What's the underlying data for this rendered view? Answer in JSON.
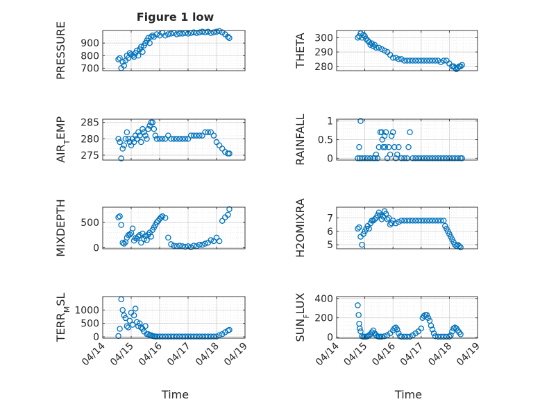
{
  "figure": {
    "title": "Figure 1 low"
  },
  "style": {
    "marker_color": "#0072BD",
    "grid_color": "#d9d9d9",
    "axis_color": "#262626"
  },
  "chart_data": [
    {
      "type": "scatter",
      "title": "Figure 1 low",
      "xlabel": "",
      "ylabel": "PRESSURE",
      "xlim": [
        "04/14",
        "04/19"
      ],
      "ylim": [
        680,
        1000
      ],
      "yticks": [
        700,
        800,
        900
      ],
      "grid": "on",
      "legend": "none",
      "series": [
        {
          "x": [
            14.55,
            14.6,
            14.65,
            14.7,
            14.75,
            14.8,
            14.85,
            14.9,
            14.95,
            15.0,
            15.05,
            15.1,
            15.15,
            15.2,
            15.25,
            15.3,
            15.35,
            15.4,
            15.45,
            15.5,
            15.55,
            15.6,
            15.65,
            15.7,
            15.75,
            15.8,
            15.9,
            16.0,
            16.1,
            16.2,
            16.3,
            16.4,
            16.5,
            16.6,
            16.7,
            16.8,
            16.9,
            17.0,
            17.1,
            17.2,
            17.3,
            17.4,
            17.5,
            17.6,
            17.7,
            17.8,
            17.9,
            18.0,
            18.1,
            18.2,
            18.3,
            18.4,
            18.45
          ],
          "y": [
            770,
            780,
            700,
            750,
            720,
            760,
            800,
            780,
            820,
            810,
            800,
            790,
            820,
            840,
            800,
            850,
            870,
            830,
            880,
            900,
            920,
            940,
            900,
            950,
            960,
            950,
            970,
            960,
            980,
            960,
            970,
            975,
            980,
            970,
            975,
            975,
            980,
            975,
            980,
            985,
            980,
            985,
            990,
            985,
            990,
            980,
            985,
            990,
            995,
            985,
            970,
            950,
            940
          ]
        }
      ]
    },
    {
      "type": "scatter",
      "xlabel": "",
      "ylabel": "THETA",
      "xlim": [
        "04/14",
        "04/19"
      ],
      "ylim": [
        277,
        305
      ],
      "yticks": [
        280,
        290,
        300
      ],
      "grid": "on",
      "legend": "none",
      "series": [
        {
          "x": [
            14.75,
            14.8,
            14.85,
            14.9,
            14.95,
            15.0,
            15.05,
            15.1,
            15.15,
            15.2,
            15.25,
            15.3,
            15.35,
            15.4,
            15.5,
            15.6,
            15.7,
            15.8,
            15.9,
            16.0,
            16.1,
            16.2,
            16.3,
            16.4,
            16.5,
            16.6,
            16.7,
            16.8,
            16.9,
            17.0,
            17.1,
            17.2,
            17.3,
            17.4,
            17.5,
            17.6,
            17.7,
            17.8,
            17.9,
            18.0,
            18.1,
            18.15,
            18.2,
            18.25,
            18.3,
            18.35,
            18.4,
            18.45
          ],
          "y": [
            300,
            301,
            303,
            300,
            302,
            301,
            299,
            298,
            297,
            295,
            296,
            294,
            295,
            293,
            293,
            292,
            291,
            290,
            288,
            286,
            286,
            285,
            285,
            284,
            284,
            284,
            284,
            284,
            284,
            284,
            284,
            284,
            284,
            284,
            284,
            284,
            283,
            284,
            284,
            282,
            280,
            280,
            279,
            278,
            279,
            280,
            280,
            281
          ]
        }
      ]
    },
    {
      "type": "scatter",
      "xlabel": "",
      "ylabel": "AIR_TEMP",
      "xlim": [
        "04/14",
        "04/19"
      ],
      "ylim": [
        273.5,
        286
      ],
      "yticks": [
        275,
        280,
        285
      ],
      "grid": "on",
      "legend": "none",
      "series": [
        {
          "x": [
            14.55,
            14.6,
            14.65,
            14.7,
            14.75,
            14.8,
            14.85,
            14.9,
            14.95,
            15.0,
            15.05,
            15.1,
            15.15,
            15.2,
            15.25,
            15.3,
            15.35,
            15.4,
            15.45,
            15.5,
            15.55,
            15.6,
            15.65,
            15.7,
            15.75,
            15.8,
            15.85,
            15.9,
            16.0,
            16.1,
            16.2,
            16.3,
            16.4,
            16.5,
            16.6,
            16.7,
            16.8,
            16.9,
            17.0,
            17.1,
            17.2,
            17.3,
            17.4,
            17.5,
            17.6,
            17.7,
            17.8,
            17.9,
            18.0,
            18.1,
            18.2,
            18.3,
            18.4,
            18.45
          ],
          "y": [
            280,
            279,
            274,
            277,
            278,
            280,
            282,
            280,
            279,
            278,
            280,
            279,
            281,
            280,
            282,
            281,
            279,
            283,
            282,
            281,
            280,
            283,
            284,
            285,
            285,
            283,
            281,
            280,
            280,
            280,
            280,
            281,
            280,
            280,
            280,
            280,
            280,
            280,
            280,
            281,
            281,
            281,
            281,
            281,
            282,
            282,
            282,
            281,
            279,
            278,
            277,
            276,
            275.5,
            275.5
          ]
        }
      ]
    },
    {
      "type": "scatter",
      "xlabel": "",
      "ylabel": "RAINFALL",
      "xlim": [
        "04/14",
        "04/19"
      ],
      "ylim": [
        -0.05,
        1.05
      ],
      "yticks": [
        0,
        0.5,
        1
      ],
      "yticklabels": [
        "0",
        "0.5",
        "1"
      ],
      "grid": "on",
      "legend": "none",
      "series": [
        {
          "x": [
            14.75,
            14.8,
            14.82,
            14.85,
            14.9,
            15.0,
            15.1,
            15.2,
            15.3,
            15.35,
            15.4,
            15.45,
            15.5,
            15.55,
            15.6,
            15.62,
            15.65,
            15.7,
            15.72,
            15.75,
            15.8,
            15.85,
            15.9,
            15.95,
            16.0,
            16.05,
            16.1,
            16.15,
            16.2,
            16.3,
            16.4,
            16.5,
            16.55,
            16.6,
            16.7,
            16.8,
            16.9,
            17.0,
            17.1,
            17.2,
            17.3,
            17.4,
            17.5,
            17.6,
            17.7,
            17.8,
            17.9,
            18.0,
            18.1,
            18.2,
            18.3,
            18.4,
            18.45
          ],
          "y": [
            0,
            0.3,
            0,
            1,
            0,
            0,
            0,
            0,
            0,
            0,
            0.1,
            0,
            0.3,
            0.7,
            0.7,
            0.5,
            0.3,
            0.6,
            0.3,
            0.7,
            0,
            0.3,
            0.1,
            0.6,
            0.7,
            0.3,
            0,
            0.1,
            0.3,
            0,
            0,
            0,
            0.3,
            0.7,
            0,
            0,
            0,
            0,
            0,
            0,
            0,
            0,
            0,
            0,
            0,
            0,
            0,
            0,
            0,
            0,
            0,
            0,
            0
          ]
        }
      ]
    },
    {
      "type": "scatter",
      "xlabel": "",
      "ylabel": "MIXDEPTH",
      "xlim": [
        "04/14",
        "04/19"
      ],
      "ylim": [
        -20,
        800
      ],
      "yticks": [
        0,
        500
      ],
      "grid": "on",
      "legend": "none",
      "series": [
        {
          "x": [
            14.55,
            14.6,
            14.65,
            14.7,
            14.75,
            14.8,
            14.85,
            14.9,
            14.95,
            15.0,
            15.05,
            15.1,
            15.15,
            15.2,
            15.25,
            15.3,
            15.35,
            15.4,
            15.45,
            15.5,
            15.55,
            15.6,
            15.65,
            15.7,
            15.75,
            15.8,
            15.85,
            15.9,
            15.95,
            16.0,
            16.05,
            16.1,
            16.2,
            16.3,
            16.4,
            16.5,
            16.6,
            16.7,
            16.8,
            16.9,
            17.0,
            17.1,
            17.2,
            17.3,
            17.4,
            17.5,
            17.6,
            17.7,
            17.8,
            17.9,
            18.0,
            18.1,
            18.2,
            18.3,
            18.4,
            18.45
          ],
          "y": [
            600,
            620,
            450,
            100,
            80,
            110,
            200,
            250,
            260,
            290,
            380,
            140,
            190,
            180,
            220,
            250,
            100,
            280,
            170,
            230,
            150,
            260,
            300,
            220,
            350,
            400,
            450,
            500,
            530,
            570,
            600,
            620,
            590,
            200,
            70,
            40,
            30,
            40,
            30,
            20,
            30,
            10,
            40,
            30,
            60,
            60,
            80,
            100,
            150,
            130,
            200,
            130,
            530,
            600,
            650,
            760
          ]
        }
      ]
    },
    {
      "type": "scatter",
      "xlabel": "",
      "ylabel": "H2OMIXRA",
      "xlim": [
        "04/14",
        "04/19"
      ],
      "ylim": [
        4.7,
        7.8
      ],
      "yticks": [
        5,
        6,
        7
      ],
      "grid": "on",
      "legend": "none",
      "series": [
        {
          "x": [
            14.75,
            14.8,
            14.85,
            14.9,
            14.95,
            15.0,
            15.05,
            15.1,
            15.15,
            15.2,
            15.25,
            15.3,
            15.35,
            15.4,
            15.45,
            15.5,
            15.55,
            15.6,
            15.65,
            15.7,
            15.75,
            15.8,
            15.85,
            15.9,
            15.95,
            16.0,
            16.1,
            16.2,
            16.3,
            16.4,
            16.5,
            16.6,
            16.7,
            16.8,
            16.9,
            17.0,
            17.1,
            17.2,
            17.3,
            17.4,
            17.5,
            17.6,
            17.7,
            17.8,
            17.85,
            17.9,
            17.95,
            18.0,
            18.05,
            18.1,
            18.15,
            18.2,
            18.25,
            18.3,
            18.35,
            18.4
          ],
          "y": [
            6.2,
            6.3,
            5.6,
            5.0,
            5.8,
            6.0,
            6.2,
            6.4,
            6.2,
            6.6,
            6.8,
            6.8,
            6.9,
            7.0,
            7.2,
            7.4,
            7.2,
            6.9,
            7.1,
            7.5,
            7.3,
            6.9,
            7.0,
            6.5,
            6.6,
            6.8,
            6.6,
            6.7,
            6.8,
            6.8,
            6.8,
            6.8,
            6.8,
            6.8,
            6.8,
            6.8,
            6.8,
            6.8,
            6.8,
            6.8,
            6.8,
            6.8,
            6.8,
            6.8,
            6.4,
            6.2,
            6.0,
            5.8,
            5.6,
            5.4,
            5.2,
            5.0,
            4.9,
            5.0,
            4.9,
            4.8
          ]
        }
      ]
    },
    {
      "type": "scatter",
      "xlabel": "Time",
      "ylabel": "TERR_MSL",
      "xlim": [
        "04/14",
        "04/19"
      ],
      "xticks": [
        "04/14",
        "04/15",
        "04/16",
        "04/17",
        "04/18",
        "04/19"
      ],
      "ylim": [
        -50,
        1500
      ],
      "yticks": [
        0,
        500,
        1000
      ],
      "grid": "on",
      "legend": "none",
      "series": [
        {
          "x": [
            14.55,
            14.6,
            14.65,
            14.7,
            14.75,
            14.8,
            14.85,
            14.9,
            14.95,
            15.0,
            15.05,
            15.1,
            15.15,
            15.2,
            15.25,
            15.3,
            15.35,
            15.4,
            15.45,
            15.5,
            15.55,
            15.6,
            15.65,
            15.7,
            15.75,
            15.8,
            15.85,
            15.9,
            16.0,
            16.1,
            16.2,
            16.3,
            16.4,
            16.5,
            16.6,
            16.7,
            16.8,
            16.9,
            17.0,
            17.1,
            17.2,
            17.3,
            17.4,
            17.5,
            17.6,
            17.7,
            17.8,
            17.9,
            18.0,
            18.1,
            18.2,
            18.3,
            18.4,
            18.45
          ],
          "y": [
            30,
            300,
            1400,
            1000,
            800,
            700,
            400,
            350,
            600,
            900,
            450,
            800,
            1050,
            550,
            400,
            500,
            350,
            300,
            200,
            400,
            100,
            100,
            50,
            60,
            30,
            20,
            10,
            10,
            10,
            10,
            10,
            10,
            10,
            10,
            10,
            10,
            10,
            10,
            10,
            10,
            10,
            10,
            10,
            10,
            10,
            10,
            10,
            10,
            10,
            60,
            100,
            170,
            230,
            260
          ]
        }
      ]
    },
    {
      "type": "scatter",
      "xlabel": "Time",
      "ylabel": "SUN_FLUX",
      "xlim": [
        "04/14",
        "04/19"
      ],
      "xticks": [
        "04/14",
        "04/15",
        "04/16",
        "04/17",
        "04/18",
        "04/19"
      ],
      "ylim": [
        -10,
        420
      ],
      "yticks": [
        0,
        200,
        400
      ],
      "grid": "on",
      "legend": "none",
      "series": [
        {
          "x": [
            14.75,
            14.78,
            14.8,
            14.82,
            14.85,
            14.9,
            14.95,
            15.0,
            15.05,
            15.1,
            15.15,
            15.2,
            15.25,
            15.3,
            15.35,
            15.4,
            15.45,
            15.5,
            15.55,
            15.6,
            15.7,
            15.8,
            15.9,
            16.0,
            16.05,
            16.1,
            16.15,
            16.2,
            16.25,
            16.3,
            16.4,
            16.5,
            16.6,
            16.7,
            16.8,
            16.9,
            17.0,
            17.05,
            17.1,
            17.15,
            17.2,
            17.25,
            17.3,
            17.35,
            17.4,
            17.45,
            17.5,
            17.6,
            17.7,
            17.8,
            17.9,
            18.0,
            18.05,
            18.1,
            18.15,
            18.2,
            18.25,
            18.3,
            18.35,
            18.4
          ],
          "y": [
            330,
            230,
            140,
            90,
            60,
            10,
            5,
            5,
            5,
            10,
            20,
            30,
            50,
            70,
            40,
            20,
            10,
            5,
            5,
            5,
            10,
            20,
            40,
            70,
            90,
            100,
            80,
            40,
            10,
            5,
            5,
            5,
            5,
            20,
            40,
            60,
            90,
            200,
            220,
            230,
            230,
            200,
            170,
            120,
            80,
            40,
            10,
            5,
            5,
            5,
            5,
            5,
            20,
            60,
            90,
            100,
            90,
            70,
            50,
            30
          ]
        }
      ]
    }
  ]
}
